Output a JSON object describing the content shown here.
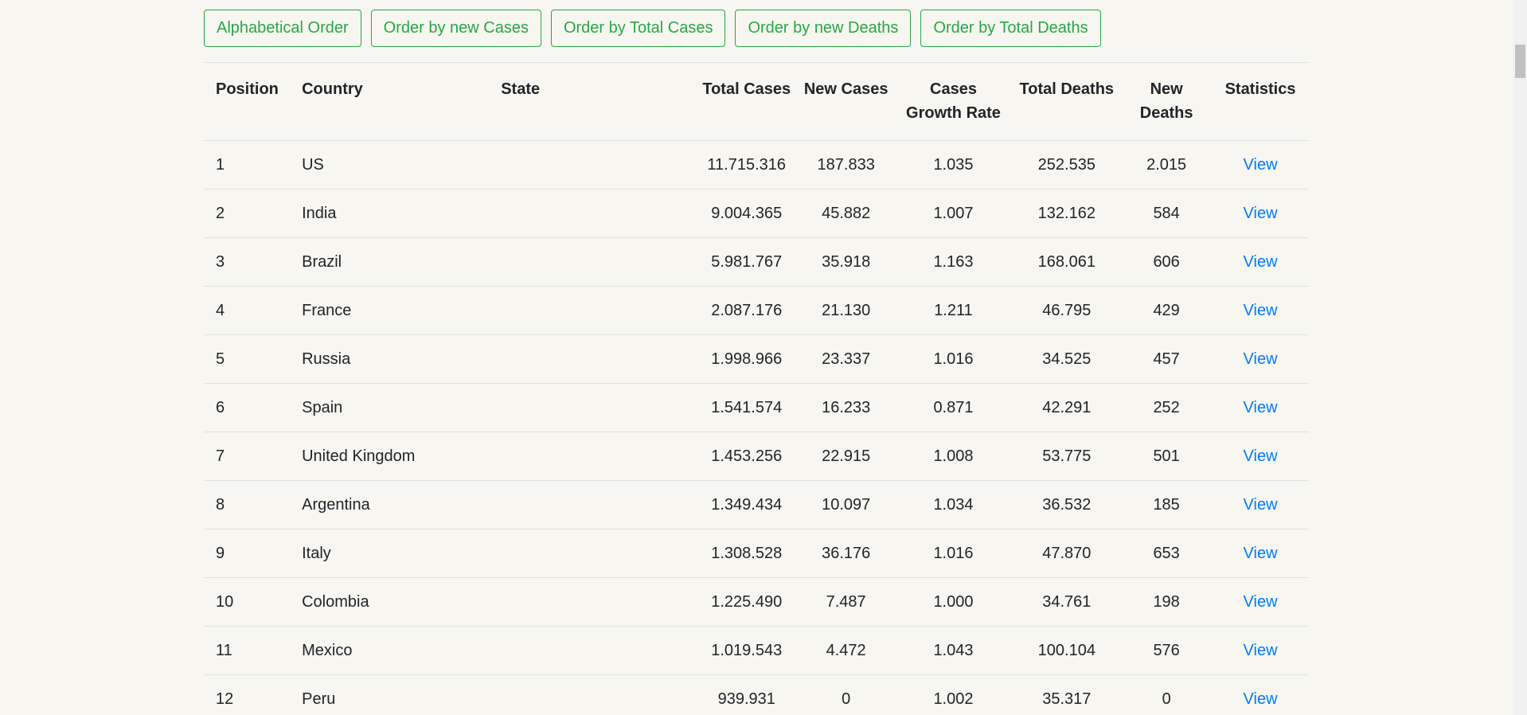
{
  "sort_buttons": [
    "Alphabetical Order",
    "Order by new Cases",
    "Order by Total Cases",
    "Order by new Deaths",
    "Order by Total Deaths"
  ],
  "table": {
    "headers": {
      "position": "Position",
      "country": "Country",
      "state": "State",
      "total_cases": "Total Cases",
      "new_cases": "New Cases",
      "growth_rate": "Cases Growth Rate",
      "total_deaths": "Total Deaths",
      "new_deaths": "New Deaths",
      "statistics": "Statistics"
    },
    "rows": [
      {
        "position": "1",
        "country": "US",
        "state": "",
        "total_cases": "11.715.316",
        "new_cases": "187.833",
        "growth_rate": "1.035",
        "total_deaths": "252.535",
        "new_deaths": "2.015",
        "link": "View"
      },
      {
        "position": "2",
        "country": "India",
        "state": "",
        "total_cases": "9.004.365",
        "new_cases": "45.882",
        "growth_rate": "1.007",
        "total_deaths": "132.162",
        "new_deaths": "584",
        "link": "View"
      },
      {
        "position": "3",
        "country": "Brazil",
        "state": "",
        "total_cases": "5.981.767",
        "new_cases": "35.918",
        "growth_rate": "1.163",
        "total_deaths": "168.061",
        "new_deaths": "606",
        "link": "View"
      },
      {
        "position": "4",
        "country": "France",
        "state": "",
        "total_cases": "2.087.176",
        "new_cases": "21.130",
        "growth_rate": "1.211",
        "total_deaths": "46.795",
        "new_deaths": "429",
        "link": "View"
      },
      {
        "position": "5",
        "country": "Russia",
        "state": "",
        "total_cases": "1.998.966",
        "new_cases": "23.337",
        "growth_rate": "1.016",
        "total_deaths": "34.525",
        "new_deaths": "457",
        "link": "View"
      },
      {
        "position": "6",
        "country": "Spain",
        "state": "",
        "total_cases": "1.541.574",
        "new_cases": "16.233",
        "growth_rate": "0.871",
        "total_deaths": "42.291",
        "new_deaths": "252",
        "link": "View"
      },
      {
        "position": "7",
        "country": "United Kingdom",
        "state": "",
        "total_cases": "1.453.256",
        "new_cases": "22.915",
        "growth_rate": "1.008",
        "total_deaths": "53.775",
        "new_deaths": "501",
        "link": "View"
      },
      {
        "position": "8",
        "country": "Argentina",
        "state": "",
        "total_cases": "1.349.434",
        "new_cases": "10.097",
        "growth_rate": "1.034",
        "total_deaths": "36.532",
        "new_deaths": "185",
        "link": "View"
      },
      {
        "position": "9",
        "country": "Italy",
        "state": "",
        "total_cases": "1.308.528",
        "new_cases": "36.176",
        "growth_rate": "1.016",
        "total_deaths": "47.870",
        "new_deaths": "653",
        "link": "View"
      },
      {
        "position": "10",
        "country": "Colombia",
        "state": "",
        "total_cases": "1.225.490",
        "new_cases": "7.487",
        "growth_rate": "1.000",
        "total_deaths": "34.761",
        "new_deaths": "198",
        "link": "View"
      },
      {
        "position": "11",
        "country": "Mexico",
        "state": "",
        "total_cases": "1.019.543",
        "new_cases": "4.472",
        "growth_rate": "1.043",
        "total_deaths": "100.104",
        "new_deaths": "576",
        "link": "View"
      },
      {
        "position": "12",
        "country": "Peru",
        "state": "",
        "total_cases": "939.931",
        "new_cases": "0",
        "growth_rate": "1.002",
        "total_deaths": "35.317",
        "new_deaths": "0",
        "link": "View"
      }
    ]
  },
  "colors": {
    "accent_green": "#28a745",
    "link_blue": "#007bff",
    "background": "#f7f6f0"
  }
}
